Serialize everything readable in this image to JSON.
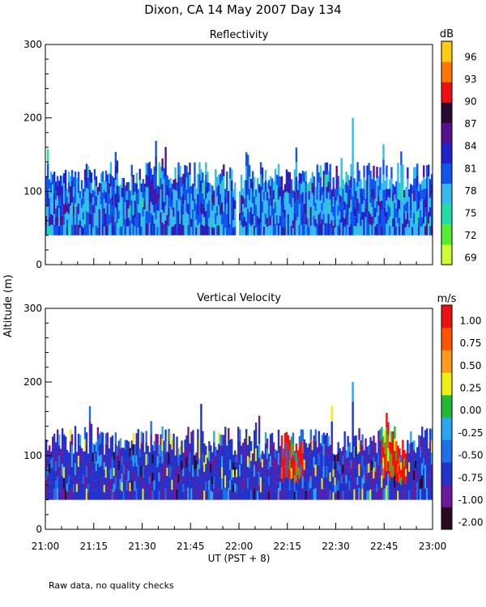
{
  "title": "Dixon, CA 14 May 2007  Day 134",
  "y_axis_label": "Altitude (m)",
  "x_axis_label": "UT  (PST + 8)",
  "footnote": "Raw data, no quality checks",
  "chart_data": [
    {
      "type": "heatmap",
      "title": "Reflectivity",
      "xlabel": "UT  (PST + 8)",
      "ylabel": "Altitude (m)",
      "xlim": [
        0,
        120
      ],
      "x_unit": "minutes after 21:00 UT",
      "x_ticks": [
        0,
        15,
        30,
        45,
        60,
        75,
        90,
        105,
        120
      ],
      "x_tick_labels": [
        "21:00",
        "21:15",
        "21:30",
        "21:45",
        "22:00",
        "22:15",
        "22:30",
        "22:45",
        "23:00"
      ],
      "ylim": [
        0,
        300
      ],
      "y_ticks": [
        0,
        100,
        200,
        300
      ],
      "y_tick_labels": [
        "0",
        "100",
        "200",
        "300"
      ],
      "data_base_altitude": 40,
      "typical_top_altitude": [
        100,
        140
      ],
      "max_echo_top": {
        "time_min": 95,
        "altitude": 200
      },
      "colorbar": {
        "unit": "dB",
        "ticks": [
          "96",
          "93",
          "90",
          "87",
          "84",
          "81",
          "78",
          "75",
          "72",
          "69"
        ],
        "range": [
          67.5,
          97.5
        ],
        "colors": [
          "#ccff33",
          "#55ee33",
          "#22ddaa",
          "#33bbee",
          "#1155ee",
          "#2222cc",
          "#55118f",
          "#2a0a33",
          "#ee1111",
          "#ff7700",
          "#ffcc11"
        ]
      },
      "ground_gap_minutes": [
        [
          59,
          60
        ]
      ]
    },
    {
      "type": "heatmap",
      "title": "Vertical Velocity",
      "xlabel": "UT  (PST + 8)",
      "ylabel": "Altitude (m)",
      "xlim": [
        0,
        120
      ],
      "x_unit": "minutes after 21:00 UT",
      "x_ticks": [
        0,
        15,
        30,
        45,
        60,
        75,
        90,
        105,
        120
      ],
      "x_tick_labels": [
        "21:00",
        "21:15",
        "21:30",
        "21:45",
        "22:00",
        "22:15",
        "22:30",
        "22:45",
        "23:00"
      ],
      "ylim": [
        0,
        300
      ],
      "y_ticks": [
        0,
        100,
        200,
        300
      ],
      "y_tick_labels": [
        "0",
        "100",
        "200",
        "300"
      ],
      "data_base_altitude": 40,
      "typical_top_altitude": [
        100,
        140
      ],
      "max_echo_top": {
        "time_min": 95,
        "altitude": 200
      },
      "updraft_regions_minutes": [
        [
          73,
          80
        ],
        [
          104,
          112
        ]
      ],
      "colorbar": {
        "unit": "m/s",
        "ticks": [
          "1.00",
          "0.75",
          "0.50",
          "0.25",
          "0.00",
          "-0.25",
          "-0.50",
          "-0.75",
          "-1.00",
          "-2.00"
        ],
        "colors": [
          "#2a0a1e",
          "#6a1a9a",
          "#2233cc",
          "#1e6fe8",
          "#2aa6ee",
          "#22bb33",
          "#eeee11",
          "#ff9a1a",
          "#ff5500",
          "#ee1111"
        ]
      }
    }
  ]
}
